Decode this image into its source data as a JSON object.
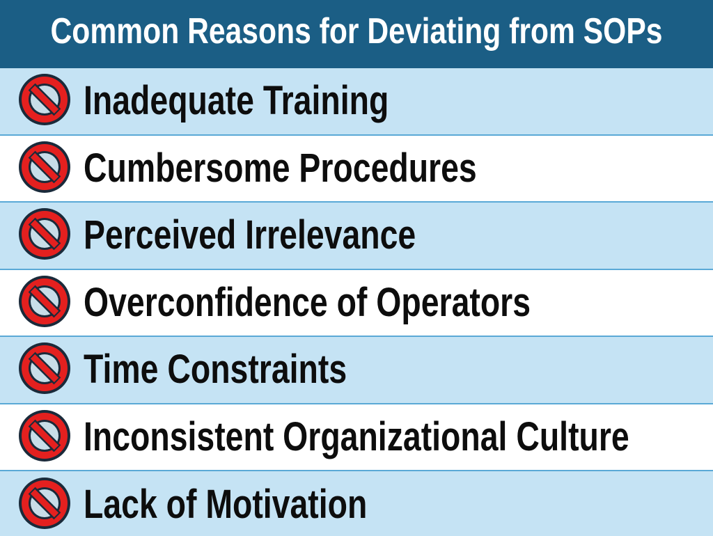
{
  "header": {
    "title": "Common Reasons for Deviating from SOPs"
  },
  "icon_name": "prohibited-icon",
  "colors": {
    "header_bg": "#1b5e85",
    "row_light_blue": "#c5e3f4",
    "row_white": "#ffffff",
    "divider": "#5aa9d6",
    "icon_red": "#e4201f",
    "icon_outline": "#1a2a3a",
    "icon_inner": "#c8dde8"
  },
  "items": [
    {
      "label": "Inadequate Training"
    },
    {
      "label": "Cumbersome Procedures"
    },
    {
      "label": "Perceived Irrelevance"
    },
    {
      "label": "Overconfidence of Operators"
    },
    {
      "label": "Time Constraints"
    },
    {
      "label": "Inconsistent Organizational Culture"
    },
    {
      "label": "Lack of Motivation"
    }
  ]
}
